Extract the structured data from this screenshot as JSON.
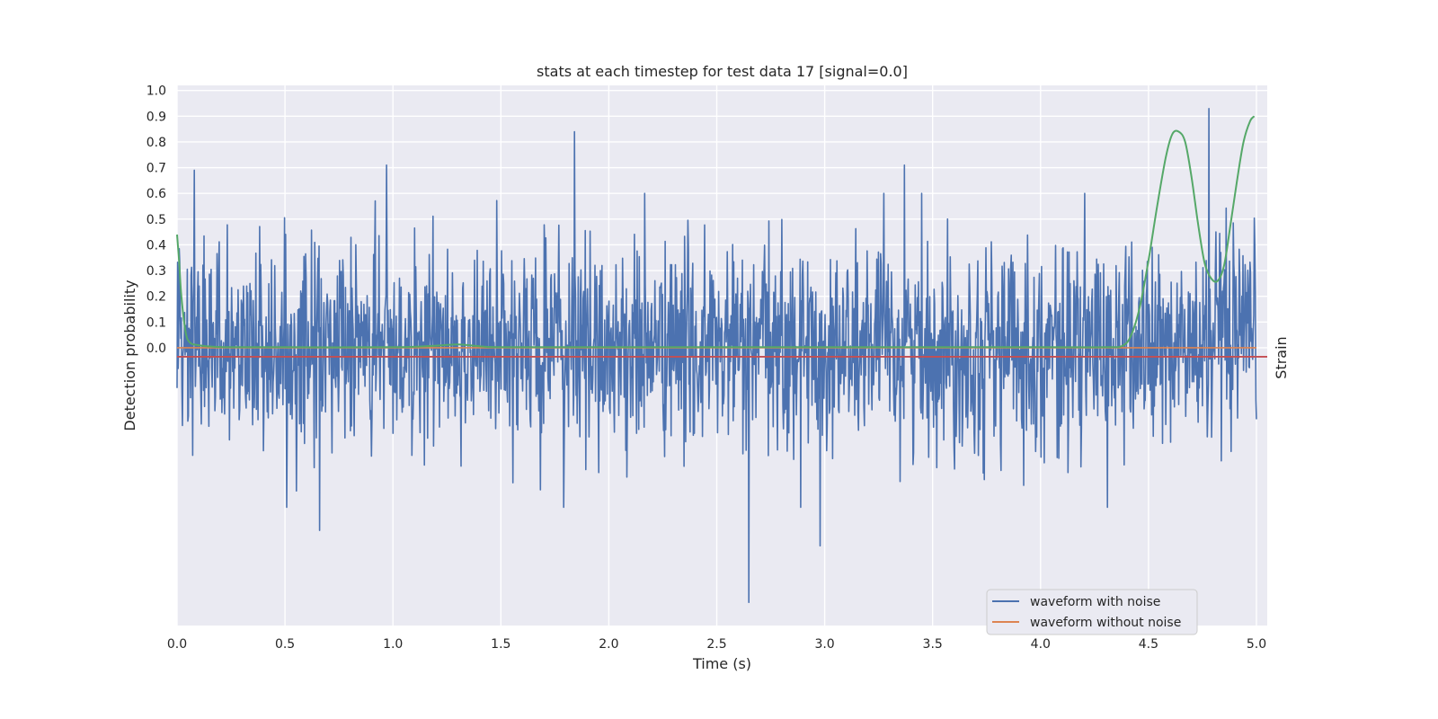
{
  "chart_data": {
    "type": "line",
    "title": "stats at each timestep for test data 17 [signal=0.0]",
    "xlabel": "Time (s)",
    "ylabel_left": "Detection probability",
    "ylabel_right": "Strain",
    "xlim": [
      0.0,
      5.05
    ],
    "ylim": [
      -1.08,
      1.02
    ],
    "x_ticks": [
      "0.0",
      "0.5",
      "1.0",
      "1.5",
      "2.0",
      "2.5",
      "3.0",
      "3.5",
      "4.0",
      "4.5",
      "5.0"
    ],
    "y_ticks": [
      "0.0",
      "0.1",
      "0.2",
      "0.3",
      "0.4",
      "0.5",
      "0.6",
      "0.7",
      "0.8",
      "0.9",
      "1.0"
    ],
    "grid": true,
    "legend_position": "lower-right",
    "legend": [
      "waveform with noise",
      "waveform without noise"
    ],
    "colors": {
      "background": "#eaeaf2",
      "grid": "#ffffff",
      "noise": "#4c72b0",
      "clean": "#dd8452",
      "probability": "#55a868",
      "threshold": "#c44e52"
    },
    "series": [
      {
        "name": "waveform with noise",
        "kind": "noise",
        "x_range": [
          0.0,
          5.0
        ],
        "sample_count": 2000,
        "notable_peaks": [
          {
            "x": 0.08,
            "y": 0.69
          },
          {
            "x": 0.97,
            "y": 0.71
          },
          {
            "x": 1.84,
            "y": 0.84
          },
          {
            "x": 3.37,
            "y": 0.71
          },
          {
            "x": 4.78,
            "y": 0.93
          },
          {
            "x": 2.65,
            "y": -0.99
          },
          {
            "x": 2.98,
            "y": -0.77
          },
          {
            "x": 0.66,
            "y": -0.71
          }
        ]
      },
      {
        "name": "waveform without noise",
        "kind": "flat",
        "x": [
          0.0,
          5.0
        ],
        "y": [
          0.0,
          0.0
        ]
      },
      {
        "name": "detection probability",
        "kind": "curve",
        "x": [
          0.0,
          0.01,
          0.02,
          0.04,
          0.06,
          0.1,
          0.2,
          0.5,
          1.0,
          1.2,
          1.3,
          1.4,
          1.5,
          2.0,
          3.0,
          4.0,
          4.3,
          4.38,
          4.42,
          4.46,
          4.5,
          4.54,
          4.58,
          4.61,
          4.64,
          4.67,
          4.7,
          4.73,
          4.76,
          4.79,
          4.82,
          4.85,
          4.88,
          4.91,
          4.94,
          4.97,
          4.99
        ],
        "y": [
          0.44,
          0.33,
          0.2,
          0.06,
          0.02,
          0.01,
          0.003,
          0.002,
          0.002,
          0.008,
          0.013,
          0.006,
          0.002,
          0.002,
          0.002,
          0.002,
          0.002,
          0.008,
          0.05,
          0.16,
          0.34,
          0.55,
          0.74,
          0.83,
          0.84,
          0.8,
          0.66,
          0.48,
          0.33,
          0.27,
          0.26,
          0.32,
          0.48,
          0.65,
          0.8,
          0.88,
          0.9
        ]
      },
      {
        "name": "threshold",
        "kind": "hline",
        "y": -0.035
      }
    ]
  }
}
